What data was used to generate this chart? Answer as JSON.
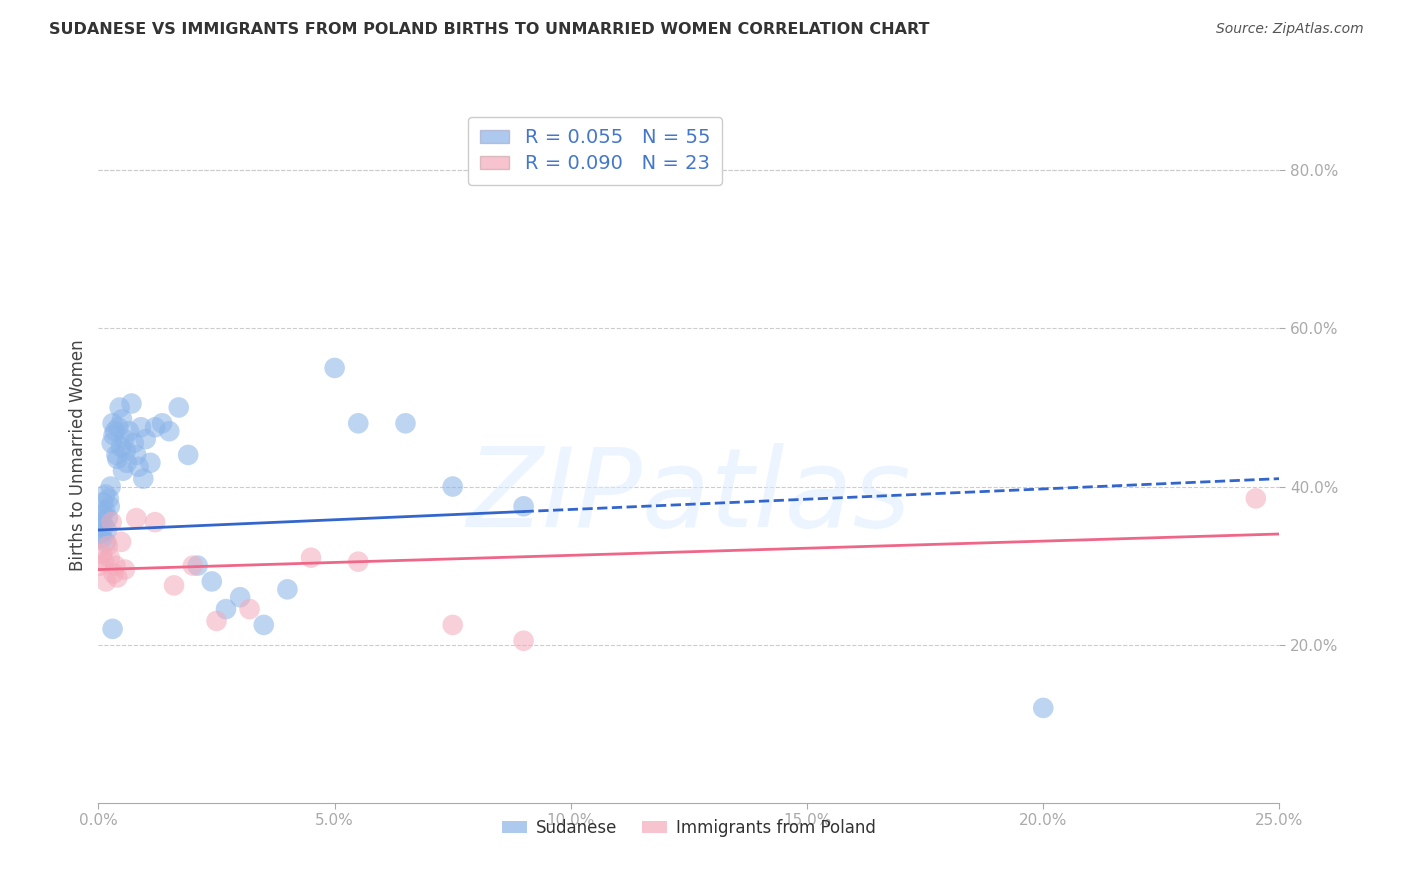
{
  "title": "SUDANESE VS IMMIGRANTS FROM POLAND BIRTHS TO UNMARRIED WOMEN CORRELATION CHART",
  "source": "Source: ZipAtlas.com",
  "xlabel_vals": [
    0.0,
    5.0,
    10.0,
    15.0,
    20.0,
    25.0
  ],
  "ylabel_vals": [
    20.0,
    40.0,
    60.0,
    80.0
  ],
  "ylabel_label": "Births to Unmarried Women",
  "xmin": 0.0,
  "xmax": 25.0,
  "ymin": 0.0,
  "ymax": 88.0,
  "legend_label1": "Sudanese",
  "legend_label2": "Immigrants from Poland",
  "blue_color": "#8AB4E8",
  "pink_color": "#F4AABB",
  "trend_blue": "#3366CC",
  "trend_pink": "#EE6688",
  "watermark": "ZIPatlas",
  "sud_R": "0.055",
  "sud_N": "55",
  "pol_R": "0.090",
  "pol_N": "23",
  "sud_trend_x0": 0.0,
  "sud_trend_y0": 34.5,
  "sud_trend_x1": 25.0,
  "sud_trend_y1": 41.0,
  "sud_solid_end": 9.0,
  "pol_trend_x0": 0.0,
  "pol_trend_y0": 29.5,
  "pol_trend_x1": 25.0,
  "pol_trend_y1": 34.0,
  "sudanese_x": [
    0.04,
    0.06,
    0.08,
    0.1,
    0.1,
    0.12,
    0.14,
    0.15,
    0.16,
    0.18,
    0.2,
    0.22,
    0.24,
    0.26,
    0.28,
    0.3,
    0.32,
    0.35,
    0.38,
    0.4,
    0.42,
    0.45,
    0.48,
    0.5,
    0.52,
    0.55,
    0.58,
    0.6,
    0.65,
    0.7,
    0.75,
    0.8,
    0.85,
    0.9,
    0.95,
    1.0,
    1.1,
    1.2,
    1.35,
    1.5,
    1.7,
    1.9,
    2.1,
    2.4,
    2.7,
    3.0,
    3.5,
    4.0,
    5.0,
    5.5,
    6.5,
    7.5,
    9.0,
    20.0,
    0.3
  ],
  "sudanese_y": [
    34.0,
    35.5,
    33.5,
    36.5,
    38.0,
    35.0,
    37.0,
    39.0,
    33.0,
    34.5,
    36.0,
    38.5,
    37.5,
    40.0,
    45.5,
    48.0,
    46.5,
    47.0,
    44.0,
    43.5,
    47.5,
    50.0,
    45.0,
    48.5,
    42.0,
    46.0,
    44.5,
    43.0,
    47.0,
    50.5,
    45.5,
    44.0,
    42.5,
    47.5,
    41.0,
    46.0,
    43.0,
    47.5,
    48.0,
    47.0,
    50.0,
    44.0,
    30.0,
    28.0,
    24.5,
    26.0,
    22.5,
    27.0,
    55.0,
    48.0,
    48.0,
    40.0,
    37.5,
    12.0,
    22.0
  ],
  "poland_x": [
    0.04,
    0.08,
    0.12,
    0.16,
    0.2,
    0.24,
    0.28,
    0.32,
    0.36,
    0.4,
    0.48,
    0.56,
    0.8,
    1.2,
    1.6,
    2.0,
    2.5,
    3.2,
    4.5,
    5.5,
    7.5,
    9.0,
    24.5
  ],
  "poland_y": [
    30.0,
    31.5,
    30.5,
    28.0,
    32.5,
    31.0,
    35.5,
    29.0,
    30.0,
    28.5,
    33.0,
    29.5,
    36.0,
    35.5,
    27.5,
    30.0,
    23.0,
    24.5,
    31.0,
    30.5,
    22.5,
    20.5,
    38.5
  ]
}
